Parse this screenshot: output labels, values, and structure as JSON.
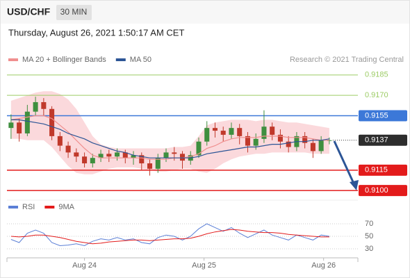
{
  "header": {
    "symbol": "USD/CHF",
    "interval": "30 MIN",
    "timestamp": "Thursday, August 26, 2021 1:50:17 AM CET"
  },
  "chart_data": [
    {
      "type": "candlestick",
      "credit": "Research © 2021 Trading Central",
      "up_color": "#3f8f3f",
      "down_color": "#c0392b",
      "xlim": [
        -0.5,
        42.5
      ],
      "ylim": [
        0.9096,
        0.9189
      ],
      "open": [
        0.9146,
        0.915,
        0.9142,
        0.9158,
        0.9165,
        0.916,
        0.914,
        0.9133,
        0.9128,
        0.9125,
        0.912,
        0.9124,
        0.9127,
        0.9125,
        0.9128,
        0.9124,
        0.9126,
        0.912,
        0.9116,
        0.9124,
        0.9128,
        0.9127,
        0.9122,
        0.9126,
        0.9136,
        0.9146,
        0.9144,
        0.9141,
        0.9146,
        0.914,
        0.9133,
        0.9138,
        0.9147,
        0.9141,
        0.9136,
        0.9132,
        0.914,
        0.9135,
        0.9129,
        0.9137
      ],
      "high": [
        0.9156,
        0.9153,
        0.9163,
        0.9169,
        0.9168,
        0.9162,
        0.9143,
        0.9136,
        0.9131,
        0.9128,
        0.9127,
        0.913,
        0.913,
        0.9131,
        0.913,
        0.9129,
        0.9128,
        0.9123,
        0.9127,
        0.9131,
        0.9132,
        0.9129,
        0.9129,
        0.9139,
        0.9151,
        0.915,
        0.9147,
        0.915,
        0.9149,
        0.9143,
        0.9142,
        0.9159,
        0.915,
        0.9145,
        0.914,
        0.9143,
        0.9143,
        0.9138,
        0.914,
        0.9139
      ],
      "low": [
        0.9138,
        0.9136,
        0.914,
        0.9155,
        0.9155,
        0.9137,
        0.9129,
        0.9124,
        0.9121,
        0.9117,
        0.9117,
        0.9121,
        0.9121,
        0.9122,
        0.912,
        0.9119,
        0.9115,
        0.9111,
        0.9113,
        0.9121,
        0.9122,
        0.9116,
        0.9119,
        0.9124,
        0.9133,
        0.9139,
        0.9136,
        0.9138,
        0.9134,
        0.9128,
        0.913,
        0.9135,
        0.9137,
        0.9131,
        0.9128,
        0.9129,
        0.9131,
        0.9124,
        0.9127,
        0.9134
      ],
      "close": [
        0.915,
        0.9142,
        0.9158,
        0.9165,
        0.916,
        0.914,
        0.9133,
        0.9128,
        0.9125,
        0.912,
        0.9124,
        0.9127,
        0.9125,
        0.9128,
        0.9124,
        0.9126,
        0.912,
        0.9116,
        0.9124,
        0.9128,
        0.9127,
        0.9122,
        0.9126,
        0.9136,
        0.9146,
        0.9144,
        0.9141,
        0.9146,
        0.914,
        0.9133,
        0.9138,
        0.9147,
        0.9141,
        0.9136,
        0.9132,
        0.914,
        0.9135,
        0.9129,
        0.9137,
        0.9137
      ],
      "series": [
        {
          "name": "MA 20 + Bollinger Bands",
          "color": "#f08f8f",
          "band_color": "#fbd9dc",
          "values": [
            0.9152,
            0.9153,
            0.9154,
            0.9155,
            0.9155,
            0.9153,
            0.9148,
            0.9143,
            0.9137,
            0.9131,
            0.9126,
            0.9124,
            0.9124,
            0.9124,
            0.9124,
            0.9124,
            0.9124,
            0.9123,
            0.9123,
            0.9123,
            0.9124,
            0.9124,
            0.9125,
            0.9127,
            0.9131,
            0.9133,
            0.9136,
            0.9138,
            0.9139,
            0.9139,
            0.9139,
            0.914,
            0.914,
            0.914,
            0.9139,
            0.9139,
            0.9139,
            0.9138,
            0.9137,
            0.9137
          ],
          "upper": [
            0.9166,
            0.9168,
            0.917,
            0.9172,
            0.9173,
            0.9173,
            0.9171,
            0.9167,
            0.916,
            0.915,
            0.914,
            0.9134,
            0.9132,
            0.9131,
            0.9131,
            0.9131,
            0.9131,
            0.9131,
            0.9131,
            0.9131,
            0.9132,
            0.9132,
            0.9133,
            0.914,
            0.9148,
            0.915,
            0.9151,
            0.9152,
            0.9152,
            0.9152,
            0.9151,
            0.9152,
            0.9152,
            0.9151,
            0.915,
            0.915,
            0.9149,
            0.9148,
            0.9147,
            0.9146
          ],
          "lower": [
            0.9138,
            0.9138,
            0.9137,
            0.9137,
            0.9137,
            0.9132,
            0.9125,
            0.9118,
            0.9113,
            0.9112,
            0.9112,
            0.9114,
            0.9116,
            0.9117,
            0.9117,
            0.9117,
            0.9116,
            0.9115,
            0.9114,
            0.9114,
            0.9115,
            0.9116,
            0.9116,
            0.9114,
            0.9113,
            0.9116,
            0.912,
            0.9123,
            0.9125,
            0.9126,
            0.9127,
            0.9127,
            0.9128,
            0.9128,
            0.9128,
            0.9128,
            0.9128,
            0.9127,
            0.9127,
            0.9127
          ]
        },
        {
          "name": "MA 50",
          "color": "#2c5596",
          "values": [
            0.9152,
            0.9152,
            0.9151,
            0.915,
            0.9149,
            0.9147,
            0.9145,
            0.9142,
            0.914,
            0.9138,
            0.9135,
            0.9133,
            0.9131,
            0.9129,
            0.9128,
            0.9126,
            0.9125,
            0.9124,
            0.9124,
            0.9124,
            0.9124,
            0.9124,
            0.9124,
            0.9125,
            0.9127,
            0.9128,
            0.9129,
            0.913,
            0.9131,
            0.9132,
            0.9132,
            0.9133,
            0.9134,
            0.9134,
            0.9135,
            0.9136,
            0.9136,
            0.9137,
            0.9137,
            0.9138
          ]
        }
      ],
      "levels": [
        {
          "value": 0.9185,
          "color": "#9ccc65",
          "boxed": false
        },
        {
          "value": 0.917,
          "label": "0.9170",
          "color": "#9ccc65",
          "boxed": false
        },
        {
          "value": 0.9155,
          "color": "#3c78d8",
          "boxed": true
        },
        {
          "value": 0.9137,
          "color": "#2d2d2d",
          "boxed": true,
          "dotted": true
        },
        {
          "value": 0.9115,
          "color": "#e31b1b",
          "boxed": true
        },
        {
          "value": 0.91,
          "label": "0.9100",
          "color": "#e31b1b",
          "boxed": true
        }
      ]
    },
    {
      "type": "line",
      "xlim": [
        -0.5,
        42.5
      ],
      "ylim": [
        20,
        80
      ],
      "yticks": [
        70,
        50,
        30
      ],
      "xticks": [
        {
          "value": 9,
          "label": "Aug 24"
        },
        {
          "value": 23.65,
          "label": "Aug 25"
        },
        {
          "value": 38.3,
          "label": "Aug 26"
        }
      ],
      "series": [
        {
          "name": "RSI",
          "color": "#5b7fd6",
          "values": [
            45,
            40,
            55,
            60,
            55,
            40,
            35,
            36,
            38,
            35,
            42,
            46,
            44,
            48,
            44,
            46,
            40,
            38,
            48,
            52,
            50,
            44,
            50,
            62,
            70,
            64,
            58,
            64,
            55,
            48,
            54,
            60,
            52,
            48,
            44,
            52,
            48,
            44,
            52,
            50
          ]
        },
        {
          "name": "9MA",
          "color": "#e31b1b",
          "values": [
            50,
            49,
            50,
            52,
            52,
            50,
            48,
            45,
            42,
            40,
            38,
            39,
            41,
            42,
            43,
            44,
            44,
            43,
            44,
            45,
            46,
            46,
            47,
            50,
            54,
            57,
            59,
            61,
            60,
            58,
            57,
            56,
            56,
            55,
            53,
            52,
            51,
            50,
            49,
            49
          ]
        }
      ]
    }
  ]
}
